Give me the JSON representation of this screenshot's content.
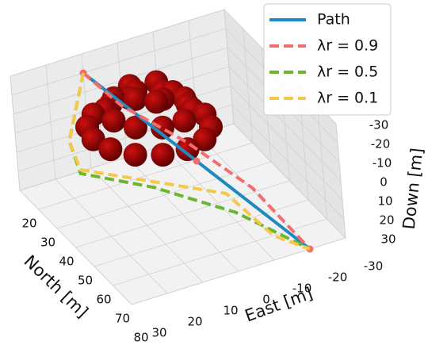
{
  "chart_data": {
    "type": "line3d",
    "xlabel": "North [m]",
    "ylabel": "East [m]",
    "zlabel": "Down [m]",
    "xlim": [
      20,
      80
    ],
    "xticks": [
      20,
      30,
      40,
      50,
      60,
      70,
      80
    ],
    "ylim": [
      -30,
      30
    ],
    "yticks": [
      30,
      20,
      10,
      0,
      -10,
      -20,
      -30
    ],
    "zlim": [
      -30,
      30
    ],
    "zticks": [
      -30,
      -20,
      -10,
      0,
      10,
      20,
      30
    ],
    "grid": true,
    "legend": "upper right",
    "series": [
      {
        "name": "Path",
        "color": "#1f8ac0",
        "style": "solid",
        "markers": "#f26d6d",
        "north": [
          20,
          50,
          80
        ],
        "east": [
          10,
          -5,
          -20
        ],
        "down": [
          -20,
          5,
          30
        ]
      },
      {
        "name": "λr = 0.9",
        "color": "#f26d6d",
        "style": "dashed",
        "north": [
          20,
          30,
          45,
          60,
          80
        ],
        "east": [
          10,
          5,
          -5,
          -15,
          -20
        ],
        "down": [
          -20,
          -10,
          0,
          15,
          30
        ]
      },
      {
        "name": "λr = 0.5",
        "color": "#6cb52f",
        "style": "dashed",
        "north": [
          20,
          30,
          35,
          45,
          60,
          80
        ],
        "east": [
          10,
          20,
          20,
          5,
          -10,
          -20
        ],
        "down": [
          -20,
          0,
          12,
          18,
          25,
          30
        ]
      },
      {
        "name": "λr = 0.1",
        "color": "#f4c84a",
        "style": "dashed",
        "north": [
          20,
          30,
          35,
          45,
          55,
          70,
          80
        ],
        "east": [
          10,
          20,
          20,
          5,
          -10,
          -15,
          -20
        ],
        "down": [
          -20,
          0,
          10,
          15,
          20,
          30,
          30
        ]
      }
    ]
  }
}
